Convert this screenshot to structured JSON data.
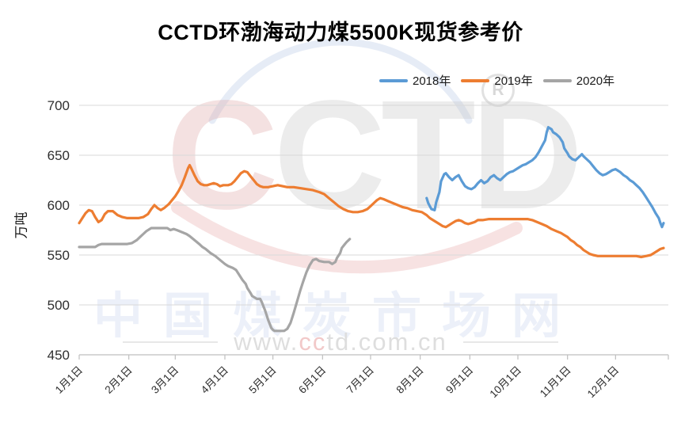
{
  "title": "CCTD环渤海动力煤5500K现货参考价",
  "watermarks": {
    "logo_first": "C",
    "logo_rest": "CTD",
    "registered_mark": "R",
    "site_name": "中国煤炭市场网",
    "site_url_prefix": "www.",
    "site_url_accent": "cc",
    "site_url_suffix": "td.com.cn"
  },
  "chart_data": {
    "type": "line",
    "title": "CCTD环渤海动力煤5500K现货参考价",
    "xlabel": "",
    "ylabel": "万吨",
    "ylim": [
      450,
      700
    ],
    "yticks": [
      450,
      500,
      550,
      600,
      650,
      700
    ],
    "grid": true,
    "legend_position": "top-right",
    "x_axis": {
      "tick_labels": [
        "1月1日",
        "2月1日",
        "3月1日",
        "4月1日",
        "5月1日",
        "6月1日",
        "7月1日",
        "8月1日",
        "9月1日",
        "10月1日",
        "11月1日",
        "12月1日"
      ],
      "tick_days": [
        1,
        32,
        61,
        92,
        122,
        153,
        183,
        214,
        245,
        275,
        306,
        336
      ],
      "domain_days": [
        1,
        366
      ]
    },
    "series": [
      {
        "name": "2018年",
        "color": "#5B9BD5",
        "points": [
          [
            218,
            607
          ],
          [
            219,
            602
          ],
          [
            221,
            596
          ],
          [
            223,
            595
          ],
          [
            224,
            603
          ],
          [
            226,
            613
          ],
          [
            227,
            624
          ],
          [
            229,
            631
          ],
          [
            230,
            632
          ],
          [
            232,
            628
          ],
          [
            234,
            625
          ],
          [
            236,
            628
          ],
          [
            238,
            630
          ],
          [
            240,
            624
          ],
          [
            242,
            619
          ],
          [
            244,
            617
          ],
          [
            246,
            616
          ],
          [
            248,
            618
          ],
          [
            250,
            622
          ],
          [
            252,
            625
          ],
          [
            254,
            622
          ],
          [
            256,
            624
          ],
          [
            258,
            628
          ],
          [
            260,
            630
          ],
          [
            262,
            627
          ],
          [
            264,
            625
          ],
          [
            266,
            628
          ],
          [
            268,
            631
          ],
          [
            270,
            633
          ],
          [
            272,
            634
          ],
          [
            274,
            636
          ],
          [
            276,
            638
          ],
          [
            278,
            640
          ],
          [
            280,
            641
          ],
          [
            282,
            643
          ],
          [
            284,
            645
          ],
          [
            286,
            648
          ],
          [
            288,
            653
          ],
          [
            290,
            659
          ],
          [
            292,
            665
          ],
          [
            293,
            673
          ],
          [
            294,
            678
          ],
          [
            296,
            676
          ],
          [
            297,
            673
          ],
          [
            299,
            671
          ],
          [
            301,
            668
          ],
          [
            303,
            663
          ],
          [
            304,
            657
          ],
          [
            306,
            652
          ],
          [
            307,
            649
          ],
          [
            309,
            646
          ],
          [
            311,
            645
          ],
          [
            313,
            648
          ],
          [
            315,
            651
          ],
          [
            316,
            649
          ],
          [
            318,
            646
          ],
          [
            320,
            643
          ],
          [
            322,
            639
          ],
          [
            324,
            635
          ],
          [
            326,
            632
          ],
          [
            328,
            630
          ],
          [
            330,
            631
          ],
          [
            332,
            633
          ],
          [
            334,
            635
          ],
          [
            336,
            636
          ],
          [
            337,
            635
          ],
          [
            339,
            633
          ],
          [
            341,
            630
          ],
          [
            343,
            628
          ],
          [
            345,
            625
          ],
          [
            347,
            623
          ],
          [
            349,
            620
          ],
          [
            351,
            617
          ],
          [
            353,
            613
          ],
          [
            355,
            608
          ],
          [
            357,
            603
          ],
          [
            359,
            598
          ],
          [
            361,
            592
          ],
          [
            363,
            587
          ],
          [
            364,
            582
          ],
          [
            365,
            578
          ],
          [
            366,
            582
          ]
        ]
      },
      {
        "name": "2019年",
        "color": "#ED7D31",
        "points": [
          [
            1,
            582
          ],
          [
            3,
            587
          ],
          [
            5,
            592
          ],
          [
            7,
            595
          ],
          [
            9,
            594
          ],
          [
            11,
            588
          ],
          [
            13,
            583
          ],
          [
            15,
            585
          ],
          [
            17,
            591
          ],
          [
            19,
            594
          ],
          [
            22,
            594
          ],
          [
            25,
            590
          ],
          [
            28,
            588
          ],
          [
            31,
            587
          ],
          [
            34,
            587
          ],
          [
            38,
            587
          ],
          [
            41,
            588
          ],
          [
            44,
            591
          ],
          [
            46,
            596
          ],
          [
            48,
            600
          ],
          [
            50,
            597
          ],
          [
            52,
            595
          ],
          [
            54,
            597
          ],
          [
            57,
            601
          ],
          [
            59,
            605
          ],
          [
            61,
            609
          ],
          [
            63,
            614
          ],
          [
            65,
            620
          ],
          [
            67,
            628
          ],
          [
            69,
            637
          ],
          [
            70,
            640
          ],
          [
            71,
            637
          ],
          [
            73,
            630
          ],
          [
            75,
            624
          ],
          [
            77,
            621
          ],
          [
            79,
            620
          ],
          [
            81,
            620
          ],
          [
            83,
            621
          ],
          [
            85,
            622
          ],
          [
            87,
            621
          ],
          [
            89,
            619
          ],
          [
            91,
            620
          ],
          [
            94,
            620
          ],
          [
            96,
            621
          ],
          [
            98,
            624
          ],
          [
            100,
            628
          ],
          [
            102,
            632
          ],
          [
            104,
            634
          ],
          [
            106,
            633
          ],
          [
            108,
            629
          ],
          [
            110,
            625
          ],
          [
            112,
            621
          ],
          [
            114,
            619
          ],
          [
            116,
            618
          ],
          [
            119,
            618
          ],
          [
            122,
            619
          ],
          [
            125,
            620
          ],
          [
            128,
            619
          ],
          [
            131,
            618
          ],
          [
            135,
            618
          ],
          [
            139,
            617
          ],
          [
            143,
            616
          ],
          [
            147,
            615
          ],
          [
            151,
            613
          ],
          [
            154,
            611
          ],
          [
            157,
            607
          ],
          [
            160,
            603
          ],
          [
            163,
            599
          ],
          [
            166,
            596
          ],
          [
            169,
            594
          ],
          [
            172,
            593
          ],
          [
            175,
            593
          ],
          [
            178,
            594
          ],
          [
            181,
            596
          ],
          [
            183,
            599
          ],
          [
            185,
            602
          ],
          [
            187,
            605
          ],
          [
            189,
            607
          ],
          [
            191,
            606
          ],
          [
            194,
            604
          ],
          [
            197,
            602
          ],
          [
            200,
            600
          ],
          [
            203,
            598
          ],
          [
            206,
            597
          ],
          [
            209,
            595
          ],
          [
            212,
            594
          ],
          [
            215,
            593
          ],
          [
            218,
            590
          ],
          [
            220,
            587
          ],
          [
            222,
            585
          ],
          [
            224,
            583
          ],
          [
            226,
            581
          ],
          [
            228,
            579
          ],
          [
            230,
            578
          ],
          [
            232,
            580
          ],
          [
            234,
            582
          ],
          [
            236,
            584
          ],
          [
            238,
            585
          ],
          [
            240,
            584
          ],
          [
            242,
            582
          ],
          [
            244,
            581
          ],
          [
            246,
            582
          ],
          [
            248,
            583
          ],
          [
            250,
            585
          ],
          [
            253,
            585
          ],
          [
            257,
            586
          ],
          [
            262,
            586
          ],
          [
            267,
            586
          ],
          [
            272,
            586
          ],
          [
            277,
            586
          ],
          [
            281,
            586
          ],
          [
            284,
            585
          ],
          [
            287,
            583
          ],
          [
            290,
            581
          ],
          [
            293,
            579
          ],
          [
            296,
            576
          ],
          [
            299,
            574
          ],
          [
            302,
            572
          ],
          [
            304,
            570
          ],
          [
            306,
            568
          ],
          [
            308,
            565
          ],
          [
            310,
            563
          ],
          [
            312,
            560
          ],
          [
            314,
            558
          ],
          [
            316,
            555
          ],
          [
            318,
            553
          ],
          [
            320,
            551
          ],
          [
            322,
            550
          ],
          [
            325,
            549
          ],
          [
            329,
            549
          ],
          [
            333,
            549
          ],
          [
            337,
            549
          ],
          [
            341,
            549
          ],
          [
            345,
            549
          ],
          [
            349,
            549
          ],
          [
            352,
            548
          ],
          [
            355,
            549
          ],
          [
            358,
            550
          ],
          [
            360,
            552
          ],
          [
            362,
            554
          ],
          [
            364,
            556
          ],
          [
            366,
            557
          ]
        ]
      },
      {
        "name": "2020年",
        "color": "#A5A5A5",
        "points": [
          [
            1,
            558
          ],
          [
            6,
            558
          ],
          [
            11,
            558
          ],
          [
            13,
            560
          ],
          [
            15,
            561
          ],
          [
            19,
            561
          ],
          [
            23,
            561
          ],
          [
            27,
            561
          ],
          [
            31,
            561
          ],
          [
            34,
            562
          ],
          [
            37,
            565
          ],
          [
            39,
            568
          ],
          [
            41,
            571
          ],
          [
            43,
            574
          ],
          [
            46,
            577
          ],
          [
            50,
            577
          ],
          [
            53,
            577
          ],
          [
            56,
            577
          ],
          [
            58,
            575
          ],
          [
            60,
            576
          ],
          [
            62,
            575
          ],
          [
            65,
            573
          ],
          [
            68,
            571
          ],
          [
            70,
            569
          ],
          [
            73,
            565
          ],
          [
            76,
            561
          ],
          [
            78,
            558
          ],
          [
            80,
            556
          ],
          [
            83,
            552
          ],
          [
            86,
            549
          ],
          [
            89,
            545
          ],
          [
            92,
            541
          ],
          [
            94,
            539
          ],
          [
            97,
            537
          ],
          [
            99,
            535
          ],
          [
            101,
            530
          ],
          [
            103,
            525
          ],
          [
            105,
            521
          ],
          [
            106,
            517
          ],
          [
            108,
            512
          ],
          [
            109,
            509
          ],
          [
            111,
            507
          ],
          [
            112,
            506
          ],
          [
            114,
            506
          ],
          [
            115,
            503
          ],
          [
            116,
            499
          ],
          [
            117,
            495
          ],
          [
            118,
            490
          ],
          [
            119,
            485
          ],
          [
            121,
            477
          ],
          [
            122,
            475
          ],
          [
            123,
            474
          ],
          [
            125,
            474
          ],
          [
            127,
            474
          ],
          [
            129,
            474
          ],
          [
            131,
            476
          ],
          [
            133,
            482
          ],
          [
            135,
            492
          ],
          [
            137,
            503
          ],
          [
            139,
            514
          ],
          [
            141,
            524
          ],
          [
            143,
            533
          ],
          [
            145,
            540
          ],
          [
            147,
            545
          ],
          [
            149,
            546
          ],
          [
            151,
            544
          ],
          [
            154,
            543
          ],
          [
            157,
            543
          ],
          [
            159,
            541
          ],
          [
            161,
            543
          ],
          [
            162,
            547
          ],
          [
            164,
            552
          ],
          [
            165,
            557
          ],
          [
            167,
            561
          ],
          [
            168,
            563
          ],
          [
            170,
            566
          ]
        ]
      }
    ]
  }
}
